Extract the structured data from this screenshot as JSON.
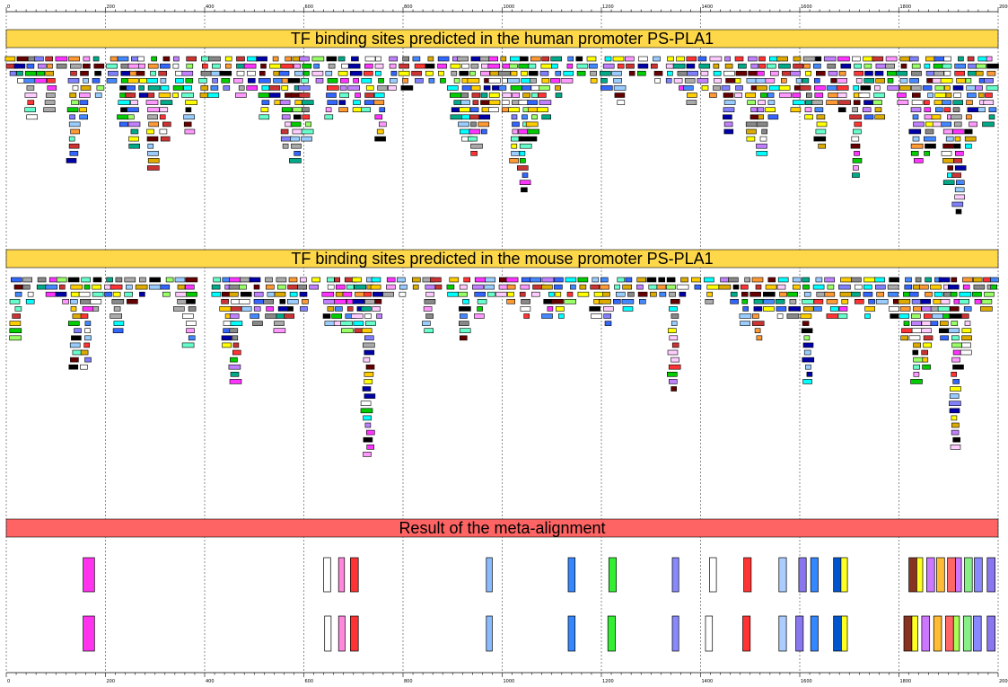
{
  "titles": {
    "human": "TF binding sites predicted in the human promoter PS-PLA1",
    "mouse": "TF binding sites predicted in the mouse promoter PS-PLA1",
    "meta": "Result of the meta-alignment"
  },
  "axis": {
    "min": 0,
    "max": 2000,
    "major_step": 200,
    "minor_step": 20,
    "labels": [
      "0",
      "200",
      "400",
      "600",
      "800",
      "1000",
      "1200",
      "1400",
      "1600",
      "1800",
      "2000"
    ]
  },
  "colors": {
    "human_banner": "#ffd84a",
    "mouse_banner": "#ffd84a",
    "meta_banner": "#ff6464",
    "palette": [
      "#ff33ff",
      "#00ffff",
      "#ffffff",
      "#4488ff",
      "#ffff00",
      "#99ff66",
      "#c080ff",
      "#ff9933",
      "#660000",
      "#888888",
      "#00cc00",
      "#ff99ff",
      "#aaaaaa",
      "#66ffcc",
      "#0000aa",
      "#ffcc00",
      "#cc3333",
      "#8080ff",
      "#ffccff",
      "#00aa88",
      "#ddaa00",
      "#ff3333",
      "#3366ff",
      "#000000",
      "#99ccff"
    ]
  },
  "human_columns": [
    {
      "x": 10,
      "n": 3
    },
    {
      "x": 30,
      "n": 4
    },
    {
      "x": 50,
      "n": 9
    },
    {
      "x": 70,
      "n": 4
    },
    {
      "x": 90,
      "n": 8
    },
    {
      "x": 110,
      "n": 2
    },
    {
      "x": 135,
      "n": 15
    },
    {
      "x": 160,
      "n": 9
    },
    {
      "x": 185,
      "n": 6
    },
    {
      "x": 215,
      "n": 4
    },
    {
      "x": 240,
      "n": 10
    },
    {
      "x": 255,
      "n": 13
    },
    {
      "x": 275,
      "n": 6
    },
    {
      "x": 295,
      "n": 16
    },
    {
      "x": 320,
      "n": 12
    },
    {
      "x": 345,
      "n": 6
    },
    {
      "x": 370,
      "n": 11
    },
    {
      "x": 400,
      "n": 6
    },
    {
      "x": 420,
      "n": 6
    },
    {
      "x": 445,
      "n": 5
    },
    {
      "x": 470,
      "n": 6
    },
    {
      "x": 495,
      "n": 5
    },
    {
      "x": 520,
      "n": 9
    },
    {
      "x": 545,
      "n": 7
    },
    {
      "x": 565,
      "n": 13
    },
    {
      "x": 585,
      "n": 15
    },
    {
      "x": 605,
      "n": 12
    },
    {
      "x": 630,
      "n": 4
    },
    {
      "x": 655,
      "n": 9
    },
    {
      "x": 680,
      "n": 8
    },
    {
      "x": 705,
      "n": 8
    },
    {
      "x": 730,
      "n": 8
    },
    {
      "x": 755,
      "n": 12
    },
    {
      "x": 780,
      "n": 5
    },
    {
      "x": 805,
      "n": 5
    },
    {
      "x": 830,
      "n": 4
    },
    {
      "x": 855,
      "n": 4
    },
    {
      "x": 880,
      "n": 4
    },
    {
      "x": 905,
      "n": 9
    },
    {
      "x": 925,
      "n": 12
    },
    {
      "x": 945,
      "n": 14
    },
    {
      "x": 965,
      "n": 11
    },
    {
      "x": 985,
      "n": 8
    },
    {
      "x": 1005,
      "n": 8
    },
    {
      "x": 1025,
      "n": 15
    },
    {
      "x": 1045,
      "n": 19
    },
    {
      "x": 1065,
      "n": 12
    },
    {
      "x": 1085,
      "n": 9
    },
    {
      "x": 1110,
      "n": 6
    },
    {
      "x": 1135,
      "n": 4
    },
    {
      "x": 1160,
      "n": 3
    },
    {
      "x": 1185,
      "n": 4
    },
    {
      "x": 1210,
      "n": 5
    },
    {
      "x": 1235,
      "n": 7
    },
    {
      "x": 1260,
      "n": 3
    },
    {
      "x": 1285,
      "n": 3
    },
    {
      "x": 1310,
      "n": 4
    },
    {
      "x": 1335,
      "n": 4
    },
    {
      "x": 1360,
      "n": 5
    },
    {
      "x": 1380,
      "n": 7
    },
    {
      "x": 1405,
      "n": 5
    },
    {
      "x": 1430,
      "n": 6
    },
    {
      "x": 1455,
      "n": 11
    },
    {
      "x": 1480,
      "n": 6
    },
    {
      "x": 1505,
      "n": 12
    },
    {
      "x": 1525,
      "n": 14
    },
    {
      "x": 1545,
      "n": 9
    },
    {
      "x": 1570,
      "n": 6
    },
    {
      "x": 1595,
      "n": 8
    },
    {
      "x": 1615,
      "n": 9
    },
    {
      "x": 1640,
      "n": 13
    },
    {
      "x": 1665,
      "n": 7
    },
    {
      "x": 1690,
      "n": 8
    },
    {
      "x": 1715,
      "n": 17
    },
    {
      "x": 1735,
      "n": 9
    },
    {
      "x": 1760,
      "n": 9
    },
    {
      "x": 1785,
      "n": 5
    },
    {
      "x": 1810,
      "n": 7
    },
    {
      "x": 1835,
      "n": 15
    },
    {
      "x": 1860,
      "n": 14
    },
    {
      "x": 1880,
      "n": 10
    },
    {
      "x": 1900,
      "n": 18
    },
    {
      "x": 1920,
      "n": 22
    },
    {
      "x": 1945,
      "n": 13
    },
    {
      "x": 1965,
      "n": 8
    },
    {
      "x": 1985,
      "n": 10
    }
  ],
  "mouse_columns": [
    {
      "x": 20,
      "n": 9
    },
    {
      "x": 45,
      "n": 4
    },
    {
      "x": 70,
      "n": 2
    },
    {
      "x": 95,
      "n": 3
    },
    {
      "x": 115,
      "n": 4
    },
    {
      "x": 140,
      "n": 13
    },
    {
      "x": 160,
      "n": 13
    },
    {
      "x": 180,
      "n": 5
    },
    {
      "x": 205,
      "n": 3
    },
    {
      "x": 225,
      "n": 8
    },
    {
      "x": 250,
      "n": 4
    },
    {
      "x": 275,
      "n": 3
    },
    {
      "x": 300,
      "n": 2
    },
    {
      "x": 325,
      "n": 3
    },
    {
      "x": 350,
      "n": 5
    },
    {
      "x": 370,
      "n": 10
    },
    {
      "x": 420,
      "n": 3
    },
    {
      "x": 445,
      "n": 10
    },
    {
      "x": 460,
      "n": 15
    },
    {
      "x": 480,
      "n": 5
    },
    {
      "x": 505,
      "n": 7
    },
    {
      "x": 530,
      "n": 6
    },
    {
      "x": 555,
      "n": 8
    },
    {
      "x": 575,
      "n": 6
    },
    {
      "x": 600,
      "n": 5
    },
    {
      "x": 625,
      "n": 2
    },
    {
      "x": 650,
      "n": 7
    },
    {
      "x": 670,
      "n": 7
    },
    {
      "x": 690,
      "n": 8
    },
    {
      "x": 710,
      "n": 8
    },
    {
      "x": 730,
      "n": 25
    },
    {
      "x": 750,
      "n": 6
    },
    {
      "x": 775,
      "n": 3
    },
    {
      "x": 800,
      "n": 3
    },
    {
      "x": 825,
      "n": 2
    },
    {
      "x": 850,
      "n": 8
    },
    {
      "x": 870,
      "n": 2
    },
    {
      "x": 900,
      "n": 3
    },
    {
      "x": 925,
      "n": 9
    },
    {
      "x": 955,
      "n": 6
    },
    {
      "x": 975,
      "n": 3
    },
    {
      "x": 1000,
      "n": 3
    },
    {
      "x": 1020,
      "n": 4
    },
    {
      "x": 1045,
      "n": 6
    },
    {
      "x": 1070,
      "n": 3
    },
    {
      "x": 1095,
      "n": 6
    },
    {
      "x": 1115,
      "n": 6
    },
    {
      "x": 1140,
      "n": 4
    },
    {
      "x": 1165,
      "n": 3
    },
    {
      "x": 1190,
      "n": 6
    },
    {
      "x": 1210,
      "n": 7
    },
    {
      "x": 1235,
      "n": 4
    },
    {
      "x": 1255,
      "n": 5
    },
    {
      "x": 1280,
      "n": 4
    },
    {
      "x": 1305,
      "n": 3
    },
    {
      "x": 1325,
      "n": 3
    },
    {
      "x": 1345,
      "n": 16
    },
    {
      "x": 1365,
      "n": 3
    },
    {
      "x": 1390,
      "n": 2
    },
    {
      "x": 1420,
      "n": 4
    },
    {
      "x": 1445,
      "n": 2
    },
    {
      "x": 1470,
      "n": 4
    },
    {
      "x": 1490,
      "n": 7
    },
    {
      "x": 1515,
      "n": 9
    },
    {
      "x": 1540,
      "n": 5
    },
    {
      "x": 1565,
      "n": 6
    },
    {
      "x": 1590,
      "n": 6
    },
    {
      "x": 1615,
      "n": 15
    },
    {
      "x": 1640,
      "n": 5
    },
    {
      "x": 1665,
      "n": 6
    },
    {
      "x": 1690,
      "n": 6
    },
    {
      "x": 1715,
      "n": 4
    },
    {
      "x": 1740,
      "n": 6
    },
    {
      "x": 1765,
      "n": 4
    },
    {
      "x": 1790,
      "n": 6
    },
    {
      "x": 1815,
      "n": 9
    },
    {
      "x": 1835,
      "n": 15
    },
    {
      "x": 1855,
      "n": 13
    },
    {
      "x": 1875,
      "n": 7
    },
    {
      "x": 1895,
      "n": 9
    },
    {
      "x": 1915,
      "n": 24
    },
    {
      "x": 1935,
      "n": 11
    },
    {
      "x": 1960,
      "n": 4
    },
    {
      "x": 1980,
      "n": 5
    },
    {
      "x": 1995,
      "n": 2
    }
  ],
  "meta_top": [
    {
      "start": 155,
      "end": 178,
      "color": "#ff33ee"
    },
    {
      "start": 640,
      "end": 654,
      "color": "#ffffff"
    },
    {
      "start": 670,
      "end": 682,
      "color": "#ff88dd"
    },
    {
      "start": 694,
      "end": 710,
      "color": "#ff3333"
    },
    {
      "start": 968,
      "end": 980,
      "color": "#88bbff"
    },
    {
      "start": 1133,
      "end": 1147,
      "color": "#3388ff"
    },
    {
      "start": 1215,
      "end": 1230,
      "color": "#33ee33"
    },
    {
      "start": 1343,
      "end": 1356,
      "color": "#8888ff"
    },
    {
      "start": 1418,
      "end": 1432,
      "color": "#ffffff"
    },
    {
      "start": 1487,
      "end": 1502,
      "color": "#ff3333"
    },
    {
      "start": 1558,
      "end": 1573,
      "color": "#aaccff"
    },
    {
      "start": 1598,
      "end": 1613,
      "color": "#8877ee"
    },
    {
      "start": 1622,
      "end": 1637,
      "color": "#3388ff"
    },
    {
      "start": 1668,
      "end": 1683,
      "color": "#0055cc"
    },
    {
      "start": 1683,
      "end": 1696,
      "color": "#ffff22"
    },
    {
      "start": 1820,
      "end": 1836,
      "color": "#883322"
    },
    {
      "start": 1836,
      "end": 1848,
      "color": "#ffff22"
    },
    {
      "start": 1856,
      "end": 1872,
      "color": "#cc77ff"
    },
    {
      "start": 1876,
      "end": 1892,
      "color": "#ffbb33"
    },
    {
      "start": 1898,
      "end": 1914,
      "color": "#ff6666"
    },
    {
      "start": 1914,
      "end": 1926,
      "color": "#cc77ff"
    },
    {
      "start": 1932,
      "end": 1948,
      "color": "#88ee88"
    },
    {
      "start": 1952,
      "end": 1968,
      "color": "#8888ff"
    },
    {
      "start": 1978,
      "end": 1994,
      "color": "#8877ee"
    }
  ],
  "meta_bottom": [
    {
      "start": 155,
      "end": 178,
      "color": "#ff33ee"
    },
    {
      "start": 642,
      "end": 655,
      "color": "#ffffff"
    },
    {
      "start": 670,
      "end": 683,
      "color": "#ff88dd"
    },
    {
      "start": 694,
      "end": 710,
      "color": "#ff3333"
    },
    {
      "start": 968,
      "end": 980,
      "color": "#88bbff"
    },
    {
      "start": 1133,
      "end": 1147,
      "color": "#3388ff"
    },
    {
      "start": 1213,
      "end": 1228,
      "color": "#33ee33"
    },
    {
      "start": 1343,
      "end": 1356,
      "color": "#8888ff"
    },
    {
      "start": 1410,
      "end": 1424,
      "color": "#ffffff"
    },
    {
      "start": 1485,
      "end": 1500,
      "color": "#ff3333"
    },
    {
      "start": 1558,
      "end": 1573,
      "color": "#aaccff"
    },
    {
      "start": 1592,
      "end": 1607,
      "color": "#8877ee"
    },
    {
      "start": 1622,
      "end": 1637,
      "color": "#3388ff"
    },
    {
      "start": 1668,
      "end": 1684,
      "color": "#0055cc"
    },
    {
      "start": 1684,
      "end": 1696,
      "color": "#ffff22"
    },
    {
      "start": 1810,
      "end": 1826,
      "color": "#883322"
    },
    {
      "start": 1826,
      "end": 1838,
      "color": "#ffff22"
    },
    {
      "start": 1846,
      "end": 1862,
      "color": "#cc77ff"
    },
    {
      "start": 1870,
      "end": 1886,
      "color": "#ffbb33"
    },
    {
      "start": 1894,
      "end": 1910,
      "color": "#ff6666"
    },
    {
      "start": 1910,
      "end": 1922,
      "color": "#aaff55"
    },
    {
      "start": 1930,
      "end": 1946,
      "color": "#88ee88"
    },
    {
      "start": 1950,
      "end": 1966,
      "color": "#8888ff"
    },
    {
      "start": 1978,
      "end": 1994,
      "color": "#8877ee"
    }
  ]
}
